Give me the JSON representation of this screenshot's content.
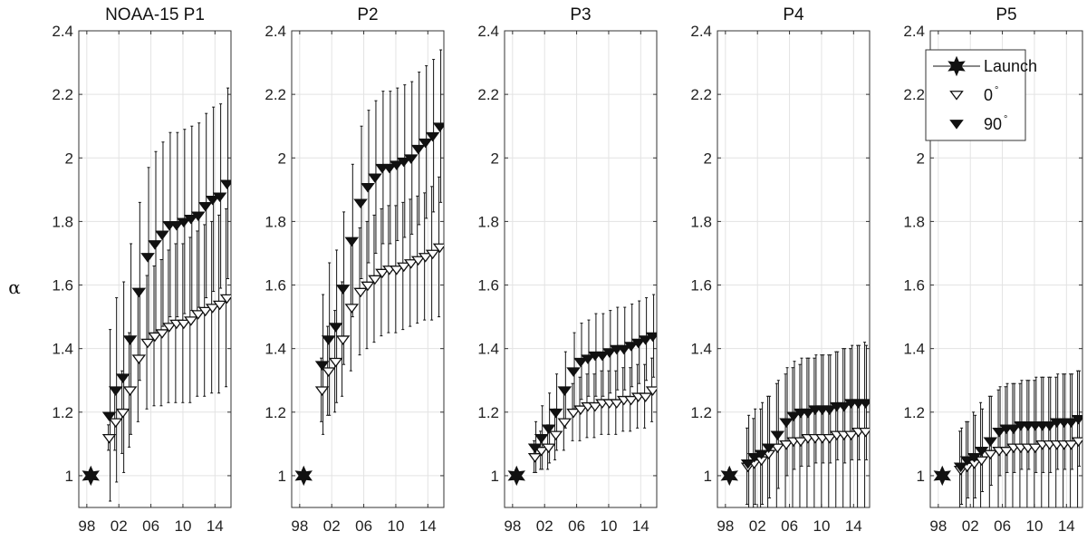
{
  "figure": {
    "ylabel": "α",
    "legend": {
      "placement": "top-right of last panel",
      "entries": [
        {
          "label": "Launch",
          "marker": "star-filled",
          "line": true
        },
        {
          "label": "0",
          "sup": "°",
          "marker": "triangle-down-open"
        },
        {
          "label": "90",
          "sup": "°",
          "marker": "triangle-down-filled"
        }
      ]
    }
  },
  "chart_data": [
    {
      "type": "scatter",
      "title": "NOAA-15 P1",
      "xlabel": "",
      "ylabel": "α",
      "xlim": [
        97,
        116
      ],
      "ylim": [
        0.9,
        2.4
      ],
      "grid": true,
      "x_ticks": [
        98,
        102,
        106,
        110,
        114
      ],
      "x_tick_labels": [
        "98",
        "02",
        "06",
        "10",
        "14"
      ],
      "y_ticks": [
        1,
        1.2,
        1.4,
        1.6,
        1.8,
        2,
        2.2,
        2.4
      ],
      "y_tick_labels": [
        "1",
        "1.2",
        "1.4",
        "1.6",
        "1.8",
        "2",
        "2.2",
        "2.4"
      ],
      "launch": {
        "x": 98.5,
        "y": 1.0
      },
      "years": [
        100.8,
        101.6,
        102.5,
        103.4,
        104.5,
        105.6,
        106.5,
        107.4,
        108.3,
        109.2,
        110.1,
        111.0,
        111.9,
        112.8,
        113.7,
        114.6,
        115.5
      ],
      "series": [
        {
          "name": "0°",
          "marker": "open",
          "values": [
            1.12,
            1.17,
            1.2,
            1.27,
            1.37,
            1.42,
            1.44,
            1.45,
            1.47,
            1.48,
            1.48,
            1.49,
            1.51,
            1.52,
            1.53,
            1.54,
            1.56
          ],
          "err": [
            0.04,
            0.09,
            0.13,
            0.18,
            0.2,
            0.21,
            0.22,
            0.23,
            0.24,
            0.25,
            0.25,
            0.26,
            0.26,
            0.27,
            0.27,
            0.28,
            0.28
          ]
        },
        {
          "name": "90°",
          "marker": "filled",
          "values": [
            1.19,
            1.27,
            1.31,
            1.43,
            1.58,
            1.69,
            1.73,
            1.76,
            1.79,
            1.79,
            1.8,
            1.81,
            1.82,
            1.85,
            1.87,
            1.88,
            1.92
          ],
          "err": [
            0.27,
            0.29,
            0.3,
            0.3,
            0.28,
            0.28,
            0.29,
            0.29,
            0.29,
            0.29,
            0.29,
            0.29,
            0.29,
            0.29,
            0.29,
            0.29,
            0.3
          ]
        }
      ]
    },
    {
      "type": "scatter",
      "title": "P2",
      "xlabel": "",
      "ylabel": "",
      "xlim": [
        97,
        116
      ],
      "ylim": [
        0.9,
        2.4
      ],
      "grid": true,
      "x_ticks": [
        98,
        102,
        106,
        110,
        114
      ],
      "x_tick_labels": [
        "98",
        "02",
        "06",
        "10",
        "14"
      ],
      "y_ticks": [
        1,
        1.2,
        1.4,
        1.6,
        1.8,
        2,
        2.2,
        2.4
      ],
      "y_tick_labels": [
        "1",
        "1.2",
        "1.4",
        "1.6",
        "1.8",
        "2",
        "2.2",
        "2.4"
      ],
      "launch": {
        "x": 98.5,
        "y": 1.0
      },
      "years": [
        100.8,
        101.6,
        102.5,
        103.4,
        104.5,
        105.6,
        106.5,
        107.4,
        108.3,
        109.2,
        110.1,
        111.0,
        111.9,
        112.8,
        113.7,
        114.6,
        115.5
      ],
      "series": [
        {
          "name": "0°",
          "marker": "open",
          "values": [
            1.27,
            1.33,
            1.36,
            1.43,
            1.53,
            1.58,
            1.6,
            1.62,
            1.64,
            1.65,
            1.65,
            1.66,
            1.67,
            1.68,
            1.69,
            1.7,
            1.72
          ],
          "err": [
            0.1,
            0.14,
            0.16,
            0.18,
            0.2,
            0.2,
            0.2,
            0.2,
            0.2,
            0.2,
            0.2,
            0.2,
            0.2,
            0.2,
            0.2,
            0.21,
            0.22
          ]
        },
        {
          "name": "90°",
          "marker": "filled",
          "values": [
            1.35,
            1.43,
            1.47,
            1.59,
            1.74,
            1.86,
            1.91,
            1.94,
            1.97,
            1.97,
            1.98,
            1.99,
            2.0,
            2.03,
            2.05,
            2.07,
            2.1
          ],
          "err": [
            0.22,
            0.24,
            0.24,
            0.24,
            0.24,
            0.24,
            0.24,
            0.24,
            0.24,
            0.24,
            0.24,
            0.24,
            0.24,
            0.24,
            0.24,
            0.24,
            0.24
          ]
        }
      ]
    },
    {
      "type": "scatter",
      "title": "P3",
      "xlabel": "",
      "ylabel": "",
      "xlim": [
        97,
        116
      ],
      "ylim": [
        0.9,
        2.4
      ],
      "grid": true,
      "x_ticks": [
        98,
        102,
        106,
        110,
        114
      ],
      "x_tick_labels": [
        "98",
        "02",
        "06",
        "10",
        "14"
      ],
      "y_ticks": [
        1,
        1.2,
        1.4,
        1.6,
        1.8,
        2,
        2.2,
        2.4
      ],
      "y_tick_labels": [
        "1",
        "1.2",
        "1.4",
        "1.6",
        "1.8",
        "2",
        "2.2",
        "2.4"
      ],
      "launch": {
        "x": 98.5,
        "y": 1.0
      },
      "years": [
        100.8,
        101.6,
        102.5,
        103.4,
        104.5,
        105.6,
        106.5,
        107.4,
        108.3,
        109.2,
        110.1,
        111.0,
        111.9,
        112.8,
        113.7,
        114.6,
        115.5
      ],
      "series": [
        {
          "name": "0°",
          "marker": "open",
          "values": [
            1.06,
            1.08,
            1.09,
            1.13,
            1.17,
            1.2,
            1.21,
            1.22,
            1.22,
            1.23,
            1.23,
            1.23,
            1.24,
            1.24,
            1.25,
            1.25,
            1.27
          ],
          "err": [
            0.05,
            0.06,
            0.07,
            0.08,
            0.09,
            0.09,
            0.1,
            0.1,
            0.1,
            0.1,
            0.1,
            0.1,
            0.1,
            0.1,
            0.1,
            0.1,
            0.1
          ]
        },
        {
          "name": "90°",
          "marker": "filled",
          "values": [
            1.09,
            1.12,
            1.15,
            1.2,
            1.27,
            1.33,
            1.36,
            1.37,
            1.38,
            1.38,
            1.39,
            1.4,
            1.4,
            1.41,
            1.42,
            1.43,
            1.44
          ],
          "err": [
            0.08,
            0.1,
            0.11,
            0.12,
            0.12,
            0.12,
            0.12,
            0.12,
            0.13,
            0.13,
            0.13,
            0.13,
            0.13,
            0.13,
            0.13,
            0.13,
            0.13
          ]
        }
      ]
    },
    {
      "type": "scatter",
      "title": "P4",
      "xlabel": "",
      "ylabel": "",
      "xlim": [
        97,
        116
      ],
      "ylim": [
        0.9,
        2.4
      ],
      "grid": true,
      "x_ticks": [
        98,
        102,
        106,
        110,
        114
      ],
      "x_tick_labels": [
        "98",
        "02",
        "06",
        "10",
        "14"
      ],
      "y_ticks": [
        1,
        1.2,
        1.4,
        1.6,
        1.8,
        2,
        2.2,
        2.4
      ],
      "y_tick_labels": [
        "1",
        "1.2",
        "1.4",
        "1.6",
        "1.8",
        "2",
        "2.2",
        "2.4"
      ],
      "launch": {
        "x": 98.5,
        "y": 1.0
      },
      "years": [
        100.8,
        101.6,
        102.5,
        103.4,
        104.5,
        105.6,
        106.5,
        107.4,
        108.3,
        109.2,
        110.1,
        111.0,
        111.9,
        112.8,
        113.7,
        114.6,
        115.5
      ],
      "series": [
        {
          "name": "0°",
          "marker": "open",
          "values": [
            1.03,
            1.04,
            1.05,
            1.07,
            1.09,
            1.1,
            1.11,
            1.11,
            1.12,
            1.12,
            1.12,
            1.12,
            1.13,
            1.13,
            1.13,
            1.14,
            1.14
          ],
          "err": [
            0.12,
            0.14,
            0.16,
            0.18,
            0.2,
            0.22,
            0.23,
            0.24,
            0.25,
            0.25,
            0.26,
            0.26,
            0.26,
            0.27,
            0.27,
            0.27,
            0.28
          ]
        },
        {
          "name": "90°",
          "marker": "filled",
          "values": [
            1.04,
            1.06,
            1.07,
            1.09,
            1.13,
            1.17,
            1.19,
            1.2,
            1.2,
            1.21,
            1.21,
            1.21,
            1.22,
            1.22,
            1.23,
            1.23,
            1.23
          ],
          "err": [
            0.15,
            0.15,
            0.16,
            0.16,
            0.17,
            0.17,
            0.17,
            0.17,
            0.17,
            0.17,
            0.17,
            0.17,
            0.17,
            0.18,
            0.18,
            0.18,
            0.18
          ]
        }
      ]
    },
    {
      "type": "scatter",
      "title": "P5",
      "xlabel": "",
      "ylabel": "",
      "xlim": [
        97,
        116
      ],
      "ylim": [
        0.9,
        2.4
      ],
      "grid": true,
      "x_ticks": [
        98,
        102,
        106,
        110,
        114
      ],
      "x_tick_labels": [
        "98",
        "02",
        "06",
        "10",
        "14"
      ],
      "y_ticks": [
        1,
        1.2,
        1.4,
        1.6,
        1.8,
        2,
        2.2,
        2.4
      ],
      "y_tick_labels": [
        "1",
        "1.2",
        "1.4",
        "1.6",
        "1.8",
        "2",
        "2.2",
        "2.4"
      ],
      "launch": {
        "x": 98.5,
        "y": 1.0
      },
      "years": [
        100.8,
        101.6,
        102.5,
        103.4,
        104.5,
        105.6,
        106.5,
        107.4,
        108.3,
        109.2,
        110.1,
        111.0,
        111.9,
        112.8,
        113.7,
        114.6,
        115.5
      ],
      "series": [
        {
          "name": "0°",
          "marker": "open",
          "values": [
            1.02,
            1.03,
            1.04,
            1.05,
            1.07,
            1.08,
            1.08,
            1.09,
            1.09,
            1.09,
            1.09,
            1.1,
            1.1,
            1.1,
            1.1,
            1.1,
            1.11
          ],
          "err": [
            0.12,
            0.14,
            0.16,
            0.18,
            0.18,
            0.19,
            0.2,
            0.2,
            0.2,
            0.21,
            0.21,
            0.21,
            0.21,
            0.21,
            0.22,
            0.22,
            0.22
          ]
        },
        {
          "name": "90°",
          "marker": "filled",
          "values": [
            1.03,
            1.05,
            1.06,
            1.08,
            1.11,
            1.14,
            1.15,
            1.15,
            1.16,
            1.16,
            1.16,
            1.16,
            1.16,
            1.17,
            1.17,
            1.17,
            1.18
          ],
          "err": [
            0.12,
            0.12,
            0.13,
            0.13,
            0.14,
            0.14,
            0.14,
            0.14,
            0.14,
            0.14,
            0.15,
            0.15,
            0.15,
            0.15,
            0.15,
            0.15,
            0.15
          ]
        }
      ]
    }
  ]
}
